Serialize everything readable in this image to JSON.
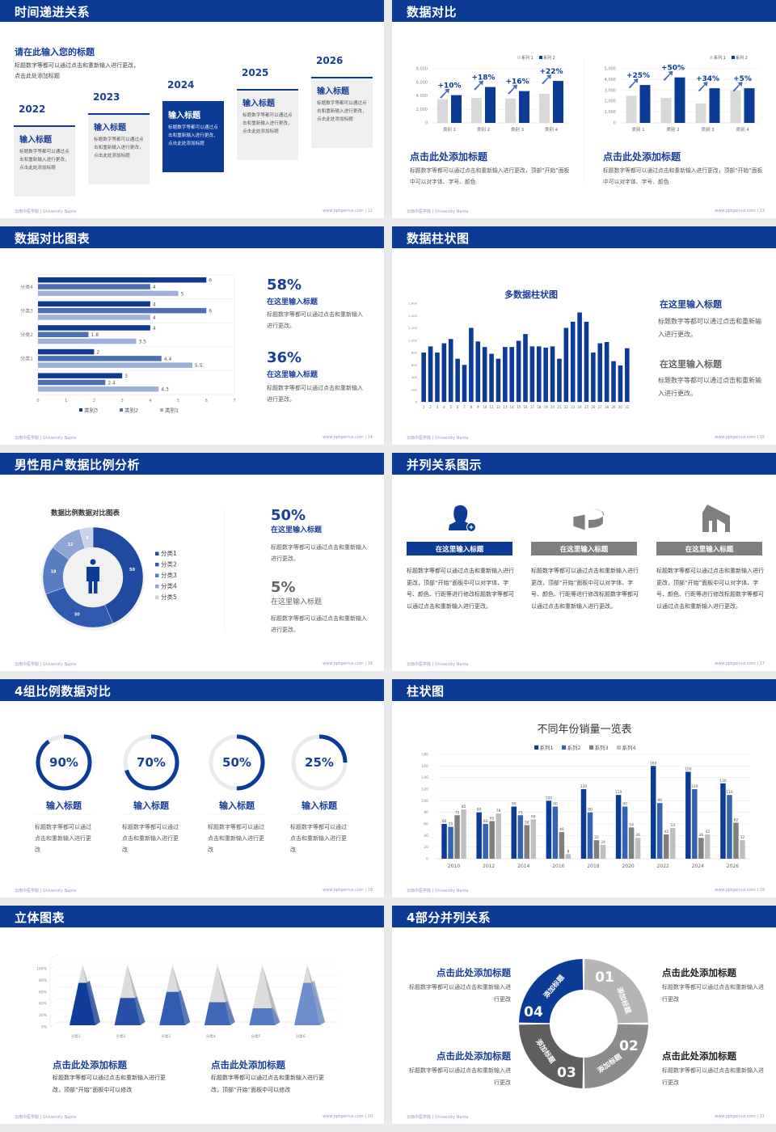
{
  "colors": {
    "brand": "#0c3b96",
    "heading": "#1a3f98",
    "gray_bar": "#d9d9d9",
    "label_gray": "#7f7f7f",
    "light_ring": "#e8eaef"
  },
  "footer": {
    "left": "云南中医学院 | University Name",
    "right": "www.pptgenius.com"
  },
  "slides": [
    {
      "title": "时间递进关系",
      "page": "12",
      "heading": "请在此输入您的标题",
      "desc": "标题数字等都可以通过点击和重新输入进行更改，点击此处添加标题",
      "steps": [
        {
          "year": "2022",
          "title": "输入标题",
          "text": "标题数字等都可以通过点击和重新输入进行更改，点击此处添加标题"
        },
        {
          "year": "2023",
          "title": "输入标题",
          "text": "标题数字等都可以通过点击和重新输入进行更改，点击此处添加标题"
        },
        {
          "year": "2024",
          "title": "输入标题",
          "text": "标题数字等都可以通过点击和重新输入进行更改，点击此处添加标题"
        },
        {
          "year": "2025",
          "title": "输入标题",
          "text": "标题数字等都可以通过点击和重新输入进行更改，点击此处添加标题"
        },
        {
          "year": "2026",
          "title": "输入标题",
          "text": "标题数字等都可以通过点击和重新输入进行更改，点击此处添加标题"
        }
      ]
    },
    {
      "title": "数据对比",
      "page": "13",
      "blocks": [
        {
          "heading": "点击此处添加标题",
          "text": "标题数字等都可以通过点击和重新输入进行更改，顶部“开始”面板中可以对字体、字号、颜色"
        },
        {
          "heading": "点击此处添加标题",
          "text": "标题数字等都可以通过点击和重新输入进行更改，顶部“开始”面板中可以对字体、字号、颜色"
        }
      ]
    },
    {
      "title": "数据对比图表",
      "page": "14",
      "stats": [
        {
          "value": "58%",
          "subtitle": "在这里输入标题",
          "text": "标题数字等都可以通过点击和重新输入进行更改。"
        },
        {
          "value": "36%",
          "subtitle": "在这里输入标题",
          "text": "标题数字等都可以通过点击和重新输入进行更改。"
        }
      ]
    },
    {
      "title": "数据柱状图",
      "page": "15",
      "blocks": [
        {
          "heading": "在这里输入标题",
          "text": "标题数字等都可以通过点击和重新输入进行更改。"
        },
        {
          "heading": "在这里输入标题",
          "text": "标题数字等都可以通过点击和重新输入进行更改。"
        }
      ]
    },
    {
      "title": "男性用户数据比例分析",
      "page": "16",
      "stats": [
        {
          "value": "50%",
          "subtitle": "在这里输入标题",
          "text": "标题数字等都可以通过点击和重新输入进行更改。"
        },
        {
          "value": "5%",
          "subtitle": "在这里输入标题",
          "text": "标题数字等都可以通过点击和重新输入进行更改。"
        }
      ]
    },
    {
      "title": "并列关系图示",
      "page": "17",
      "items": [
        {
          "icon": "user-add-icon",
          "label": "在这里输入标题",
          "text": "标题数字等都可以通过点击和重新输入进行更改，顶部“开始”面板中可以对字体、字号、颜色、行距等进行修改标题数字等都可以通过点击和重新输入进行更改。",
          "color": "#0c3b96"
        },
        {
          "icon": "pie-chart-icon",
          "label": "在这里输入标题",
          "text": "标题数字等都可以通过点击和重新输入进行更改，顶部“开始”面板中可以对字体、字号、颜色、行距等进行修改标题数字等都可以通过点击和重新输入进行更改。",
          "color": "#7f7f7f"
        },
        {
          "icon": "building-icon",
          "label": "在这里输入标题",
          "text": "标题数字等都可以通过点击和重新输入进行更改，顶部“开始”面板中可以对字体、字号、颜色、行距等进行修改标题数字等都可以通过点击和重新输入进行更改。",
          "color": "#7f7f7f"
        }
      ]
    },
    {
      "title": "4组比例数据对比",
      "page": "18",
      "rings": [
        {
          "value": 90,
          "label": "90%",
          "title": "输入标题",
          "text": "标题数字等都可以通过点击和重新输入进行更改"
        },
        {
          "value": 70,
          "label": "70%",
          "title": "输入标题",
          "text": "标题数字等都可以通过点击和重新输入进行更改"
        },
        {
          "value": 50,
          "label": "50%",
          "title": "输入标题",
          "text": "标题数字等都可以通过点击和重新输入进行更改"
        },
        {
          "value": 25,
          "label": "25%",
          "title": "输入标题",
          "text": "标题数字等都可以通过点击和重新输入进行更改"
        }
      ]
    },
    {
      "title": "柱状图",
      "page": "19"
    },
    {
      "title": "立体图表",
      "page": "20",
      "blocks": [
        {
          "heading": "点击此处添加标题",
          "text": "标题数字等都可以通过点击和重新输入进行更改，顶部“开始”面板中可以修改"
        },
        {
          "heading": "点击此处添加标题",
          "text": "标题数字等都可以通过点击和重新输入进行更改，顶部“开始”面板中可以修改"
        }
      ]
    },
    {
      "title": "4部分并列关系",
      "page": "21",
      "segments": [
        {
          "num": "01",
          "label": "添加标题",
          "color": "#b5b5b5"
        },
        {
          "num": "02",
          "label": "添加标题",
          "color": "#8c8c8c"
        },
        {
          "num": "03",
          "label": "添加标题",
          "color": "#5f5f5f"
        },
        {
          "num": "04",
          "label": "添加标题",
          "color": "#0c3b96"
        }
      ],
      "blocks": [
        {
          "heading": "点击此处添加标题",
          "text": "标题数字等都可以通过点击和重新输入进行更改"
        },
        {
          "heading": "点击此处添加标题",
          "text": "标题数字等都可以通过点击和重新输入进行更改"
        },
        {
          "heading": "点击此处添加标题",
          "text": "标题数字等都可以通过点击和重新输入进行更改"
        },
        {
          "heading": "点击此处添加标题",
          "text": "标题数字等都可以通过点击和重新输入进行更改"
        }
      ]
    }
  ],
  "chart_data": [
    {
      "type": "bar",
      "categories": [
        "类别 1",
        "类别 2",
        "类别 3",
        "类别 4"
      ],
      "series": [
        {
          "name": "系列 1",
          "values": [
            3500,
            3700,
            3600,
            4300
          ],
          "color": "#d9d9d9"
        },
        {
          "name": "系列 2",
          "values": [
            4100,
            5300,
            4700,
            6200
          ],
          "color": "#0c3b96"
        }
      ],
      "ylim": [
        0,
        8000
      ],
      "ytick_labels": [
        "0",
        "2,000",
        "4,000",
        "6,000",
        "8,000"
      ],
      "annotations": [
        "+10%",
        "+18%",
        "+16%",
        "+22%"
      ],
      "legend": "top-right",
      "grid": true
    },
    {
      "type": "bar",
      "categories": [
        "类别 1",
        "类别 2",
        "类别 3",
        "类别 4"
      ],
      "series": [
        {
          "name": "系列 1",
          "values": [
            2500,
            2300,
            1800,
            3000
          ],
          "color": "#d9d9d9"
        },
        {
          "name": "系列 2",
          "values": [
            3500,
            4200,
            3200,
            3200
          ],
          "color": "#0c3b96"
        }
      ],
      "ylim": [
        0,
        5000
      ],
      "ytick_labels": [
        "0",
        "1,000",
        "2,000",
        "3,000",
        "4,000",
        "5,000"
      ],
      "annotations": [
        "+25%",
        "+50%",
        "+34%",
        "+5%"
      ],
      "legend": "top-right",
      "grid": true
    },
    {
      "type": "bar",
      "orientation": "horizontal",
      "categories": [
        "",
        "分类1",
        "分类2",
        "分类3",
        "分类4"
      ],
      "series": [
        {
          "name": "类别3",
          "values": [
            3,
            2,
            4,
            4,
            6
          ],
          "color": "#0f3a8f"
        },
        {
          "name": "类别2",
          "values": [
            2.4,
            4.4,
            1.8,
            6,
            4
          ],
          "color": "#4a6fb5"
        },
        {
          "name": "类别1",
          "values": [
            4.3,
            5.5,
            3.5,
            4,
            5
          ],
          "color": "#9fb1d8"
        }
      ],
      "xlim": [
        0,
        7
      ],
      "xtick_labels": [
        "0",
        "1",
        "2",
        "3",
        "4",
        "5",
        "6",
        "7"
      ],
      "legend": "bottom",
      "grid": true
    },
    {
      "type": "bar",
      "title": "多数据柱状图",
      "categories": [
        "1",
        "2",
        "3",
        "4",
        "5",
        "6",
        "7",
        "8",
        "9",
        "10",
        "11",
        "12",
        "13",
        "14",
        "15",
        "16",
        "17",
        "18",
        "19",
        "20",
        "21",
        "22",
        "23",
        "24",
        "25",
        "26",
        "27",
        "28",
        "29",
        "30",
        "31"
      ],
      "values": [
        800,
        900,
        800,
        950,
        1020,
        700,
        600,
        1200,
        980,
        890,
        780,
        700,
        890,
        890,
        990,
        1100,
        900,
        900,
        880,
        900,
        700,
        1200,
        1300,
        1450,
        1300,
        800,
        950,
        970,
        660,
        590,
        870
      ],
      "color": "#0c3b96",
      "ylim": [
        0,
        1600
      ],
      "ytick_labels": [
        "0",
        "200",
        "400",
        "600",
        "800",
        "1,000",
        "1,200",
        "1,400",
        "1,600"
      ],
      "grid": false
    },
    {
      "type": "pie",
      "subtype": "donut",
      "title": "数据比例数据对比图表",
      "categories": [
        "分类1",
        "分类2",
        "分类3",
        "分类4",
        "分类5"
      ],
      "values": [
        50,
        30,
        18,
        12,
        5
      ],
      "colors": [
        "#1f4aa0",
        "#2f5aad",
        "#5a7cc0",
        "#8fa5d4",
        "#c8d3ea"
      ],
      "legend": "right"
    },
    {
      "type": "bar",
      "title": "不同年份销量一览表",
      "categories": [
        "2010",
        "2012",
        "2014",
        "2016",
        "2018",
        "2020",
        "2022",
        "2024",
        "2026"
      ],
      "series": [
        {
          "name": "系列1",
          "values": [
            60,
            80,
            90,
            100,
            120,
            110,
            160,
            150,
            130
          ],
          "color": "#0c3b96"
        },
        {
          "name": "系列2",
          "values": [
            55,
            60,
            75,
            90,
            80,
            90,
            96,
            120,
            110
          ],
          "color": "#3563b0"
        },
        {
          "name": "系列3",
          "values": [
            75,
            65,
            58,
            46,
            32,
            54,
            42,
            36,
            62
          ],
          "color": "#7f7f7f"
        },
        {
          "name": "系列4",
          "values": [
            85,
            78,
            68,
            8,
            24,
            36,
            53,
            42,
            32
          ],
          "color": "#bfbfbf"
        }
      ],
      "ylim": [
        0,
        180
      ],
      "ytick_labels": [
        "0",
        "20",
        "40",
        "60",
        "80",
        "100",
        "120",
        "140",
        "160",
        "180"
      ],
      "legend": "top",
      "grid": true
    },
    {
      "type": "bar",
      "subtype": "3d-pyramid",
      "categories": [
        "分类1",
        "分类2",
        "分类3",
        "分类4",
        "分类5",
        "分类6"
      ],
      "values": [
        70,
        45,
        55,
        38,
        28,
        70
      ],
      "ylim": [
        0,
        100
      ],
      "ytick_labels": [
        "0%",
        "20%",
        "40%",
        "60%",
        "80%",
        "100%"
      ],
      "colors": [
        "#0f3d99",
        "#2650a8",
        "#2f5db0",
        "#4068b5",
        "#5479be",
        "#6f8fcc"
      ],
      "grid": true
    }
  ]
}
